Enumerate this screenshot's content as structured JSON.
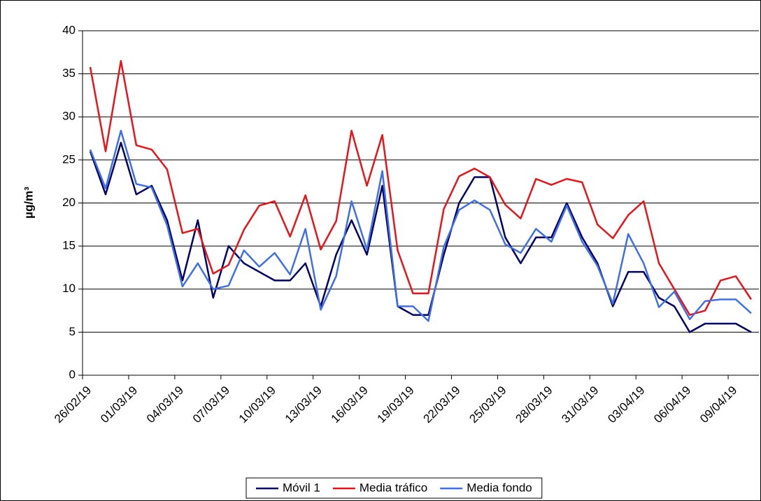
{
  "chart_data": {
    "type": "line",
    "ylabel": "µg/m³",
    "categories": [
      "26/02/19",
      null,
      null,
      "01/03/19",
      null,
      null,
      "04/03/19",
      null,
      null,
      "07/03/19",
      null,
      null,
      "10/03/19",
      null,
      null,
      "13/03/19",
      null,
      null,
      "16/03/19",
      null,
      null,
      "19/03/19",
      null,
      null,
      "22/03/19",
      null,
      null,
      "25/03/19",
      null,
      null,
      "28/03/19",
      null,
      null,
      "31/03/19",
      null,
      null,
      "03/04/19",
      null,
      null,
      "06/04/19",
      null,
      null,
      "09/04/19",
      null
    ],
    "series": [
      {
        "name": "Móvil 1",
        "color": "#000066",
        "values": [
          26,
          21,
          27,
          21,
          22,
          18,
          11,
          18,
          9,
          15,
          13,
          12,
          11,
          11,
          13,
          8,
          14,
          18,
          14,
          22,
          8,
          7,
          7,
          14,
          20,
          23,
          23,
          16,
          13,
          16,
          16,
          20,
          16,
          13,
          8,
          12,
          12,
          9,
          8,
          5,
          6,
          6,
          6,
          5
        ]
      },
      {
        "name": "Media tráfico",
        "color": "#e8141a",
        "values": [
          35.8,
          26,
          36.5,
          26.7,
          26.2,
          23.9,
          16.5,
          17,
          11.8,
          12.8,
          16.9,
          19.7,
          20.2,
          16.1,
          20.9,
          14.6,
          17.9,
          28.4,
          22,
          27.9,
          14.5,
          9.5,
          9.5,
          19.3,
          23.1,
          24,
          23,
          19.8,
          18.2,
          22.8,
          22.1,
          22.8,
          22.4,
          17.5,
          15.9,
          18.6,
          20.2,
          13,
          10,
          7,
          7.5,
          11,
          11.5,
          8.8
        ]
      },
      {
        "name": "Media fondo",
        "color": "#3f6fe8",
        "values": [
          26.2,
          21.7,
          28.4,
          22.2,
          21.8,
          17.4,
          10.3,
          13,
          10,
          10.4,
          14.5,
          12.6,
          14.2,
          11.7,
          17,
          7.6,
          11.5,
          20.2,
          14.6,
          23.7,
          8,
          8,
          6.3,
          14.9,
          19.2,
          20.3,
          19.2,
          15.2,
          14.2,
          17,
          15.5,
          19.7,
          15.5,
          12.7,
          8.3,
          16.4,
          13,
          7.9,
          9.7,
          6.5,
          8.6,
          8.8,
          8.8,
          7.2
        ]
      }
    ],
    "ylim": [
      0,
      40
    ],
    "yticks": [
      0,
      5,
      10,
      15,
      20,
      25,
      30,
      35,
      40
    ],
    "grid": true,
    "legend": "bottom"
  }
}
